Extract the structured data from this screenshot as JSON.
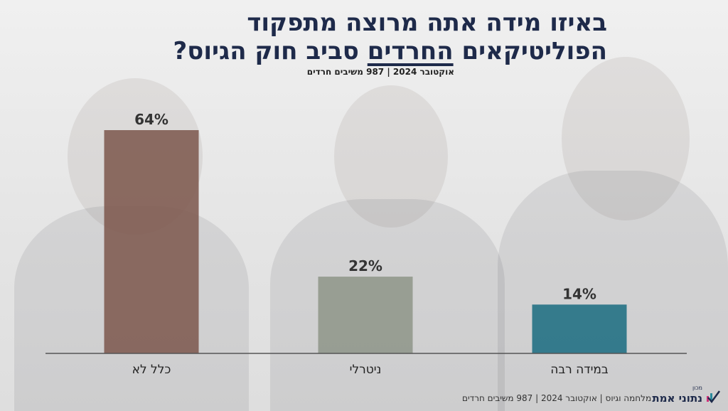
{
  "title_line1": "באיזו מידה אתה מרוצה מתפקוד",
  "title_line2_a": "הפוליטיקאים ",
  "title_line2_b": "החרדים",
  "title_line2_c": " סביב חוק הגיוס?",
  "subtitle": "אוקטובר 2024 | 987 משיבים חרדים",
  "footer": "מלחמה וגיוס | אוקטובר 2024 | 987 משיבים חרדים",
  "logo": {
    "small": "מכון",
    "name": "נתוני אמת",
    "icon": "checkmark-bars-icon"
  },
  "chart_data": {
    "type": "bar",
    "categories": [
      "כלל לא",
      "ניטרלי",
      "במידה רבה"
    ],
    "values": [
      64,
      22,
      14
    ],
    "value_labels": [
      "64%",
      "22%",
      "14%"
    ],
    "colors": [
      "#7e5a50",
      "#8f968a",
      "#1f6e82"
    ],
    "ylim": [
      0,
      70
    ],
    "grid": false,
    "legend": "none"
  }
}
